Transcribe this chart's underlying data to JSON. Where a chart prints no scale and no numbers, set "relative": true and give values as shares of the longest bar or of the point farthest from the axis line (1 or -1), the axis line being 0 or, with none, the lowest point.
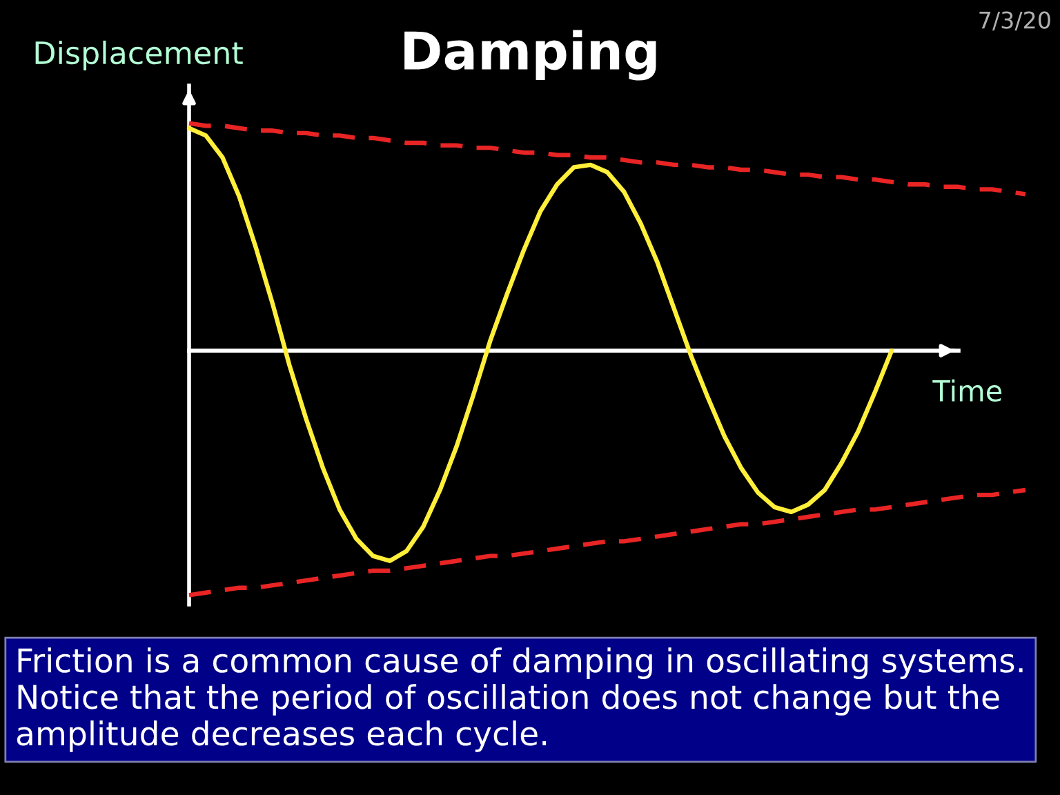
{
  "chart_data": {
    "type": "line",
    "relative": true,
    "title": "Damping",
    "xlabel": "Time",
    "ylabel": "Displacement",
    "annotations": [
      "7/3/20",
      "Friction is a common cause of damping in oscillating systems. Notice that the period of oscillation does not change but the amplitude decreases each cycle."
    ],
    "categories": [
      null,
      null,
      null,
      null,
      null,
      null,
      null,
      null,
      null,
      null,
      null,
      null,
      null,
      null,
      null,
      null,
      null,
      null,
      null,
      null,
      null,
      null,
      null,
      null,
      null,
      null,
      null,
      null,
      null,
      null,
      null,
      null,
      null,
      null,
      null,
      null,
      null,
      null,
      null,
      null,
      null,
      null,
      null,
      null,
      null,
      null,
      null,
      null,
      null,
      null,
      null
    ],
    "series": [
      {
        "color": "#e82424",
        "line_style": "dashed",
        "values": [
          0.93,
          0.92,
          0.92,
          0.91,
          0.9,
          0.9,
          0.89,
          0.89,
          0.88,
          0.88,
          0.87,
          0.87,
          0.86,
          0.85,
          0.85,
          0.84,
          0.84,
          0.83,
          0.83,
          0.82,
          0.81,
          0.81,
          0.8,
          0.8,
          0.79,
          0.79,
          0.78,
          0.77,
          0.77,
          0.76,
          0.76,
          0.75,
          0.75,
          0.74,
          0.74,
          0.73,
          0.72,
          0.72,
          0.71,
          0.71,
          0.7,
          0.7,
          0.69,
          0.68,
          0.68,
          0.67,
          0.67,
          0.66,
          0.66,
          0.65,
          0.64
        ]
      },
      {
        "color": "#e82424",
        "line_style": "dashed",
        "values": [
          -1.0,
          -0.99,
          -0.98,
          -0.97,
          -0.97,
          -0.96,
          -0.95,
          -0.94,
          -0.93,
          -0.92,
          -0.91,
          -0.9,
          -0.9,
          -0.89,
          -0.88,
          -0.87,
          -0.86,
          -0.85,
          -0.84,
          -0.84,
          -0.83,
          -0.82,
          -0.81,
          -0.8,
          -0.79,
          -0.78,
          -0.78,
          -0.77,
          -0.76,
          -0.75,
          -0.74,
          -0.73,
          -0.72,
          -0.71,
          -0.71,
          -0.7,
          -0.69,
          -0.68,
          -0.67,
          -0.66,
          -0.65,
          -0.65,
          -0.64,
          -0.63,
          -0.62,
          -0.61,
          -0.6,
          -0.59,
          -0.59,
          -0.58,
          -0.57
        ]
      },
      {
        "color": "#ffef3a",
        "values": [
          0.91,
          0.88,
          0.79,
          0.63,
          0.42,
          0.19,
          -0.06,
          -0.28,
          -0.48,
          -0.65,
          -0.77,
          -0.84,
          -0.86,
          -0.82,
          -0.72,
          -0.57,
          -0.39,
          -0.18,
          0.04,
          0.23,
          0.41,
          0.57,
          0.68,
          0.75,
          0.76,
          0.73,
          0.65,
          0.52,
          0.36,
          0.17,
          -0.02,
          -0.19,
          -0.35,
          -0.48,
          -0.58,
          -0.64,
          -0.66,
          -0.63,
          -0.57,
          -0.46,
          -0.33,
          -0.17,
          0,
          null,
          null,
          null,
          null,
          null,
          null,
          null,
          null
        ]
      }
    ]
  }
}
